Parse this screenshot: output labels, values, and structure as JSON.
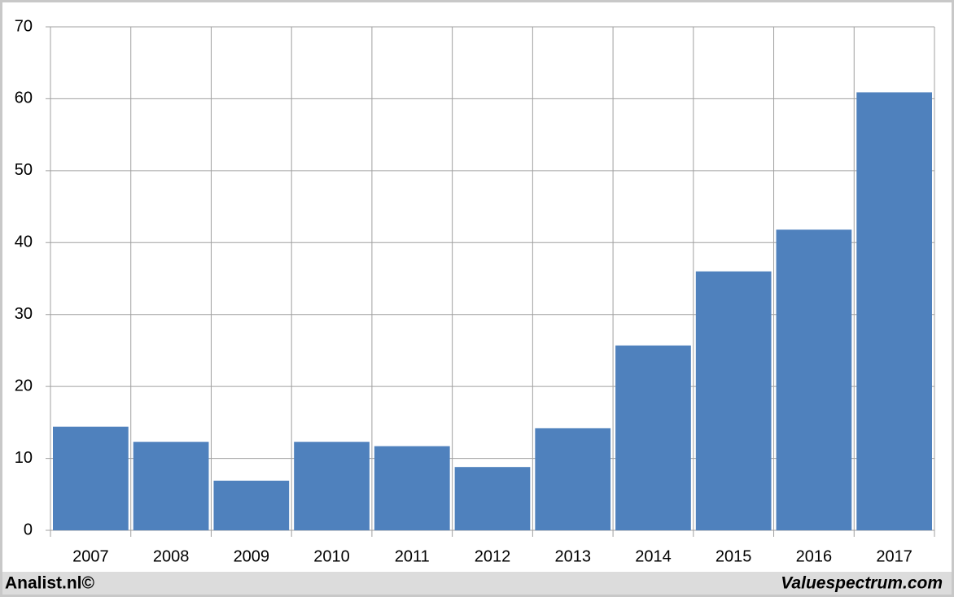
{
  "chart_data": {
    "type": "bar",
    "categories": [
      "2007",
      "2008",
      "2009",
      "2010",
      "2011",
      "2012",
      "2013",
      "2014",
      "2015",
      "2016",
      "2017"
    ],
    "values": [
      14.4,
      12.3,
      6.9,
      12.3,
      11.7,
      8.8,
      14.2,
      25.7,
      36.0,
      41.8,
      60.9
    ],
    "color": "#4f81bd",
    "ylim": [
      0,
      70
    ],
    "yticks": [
      0,
      10,
      20,
      30,
      40,
      50,
      60,
      70
    ],
    "grid": true
  },
  "footer": {
    "left": "Analist.nl©",
    "right": "Valuespectrum.com"
  }
}
